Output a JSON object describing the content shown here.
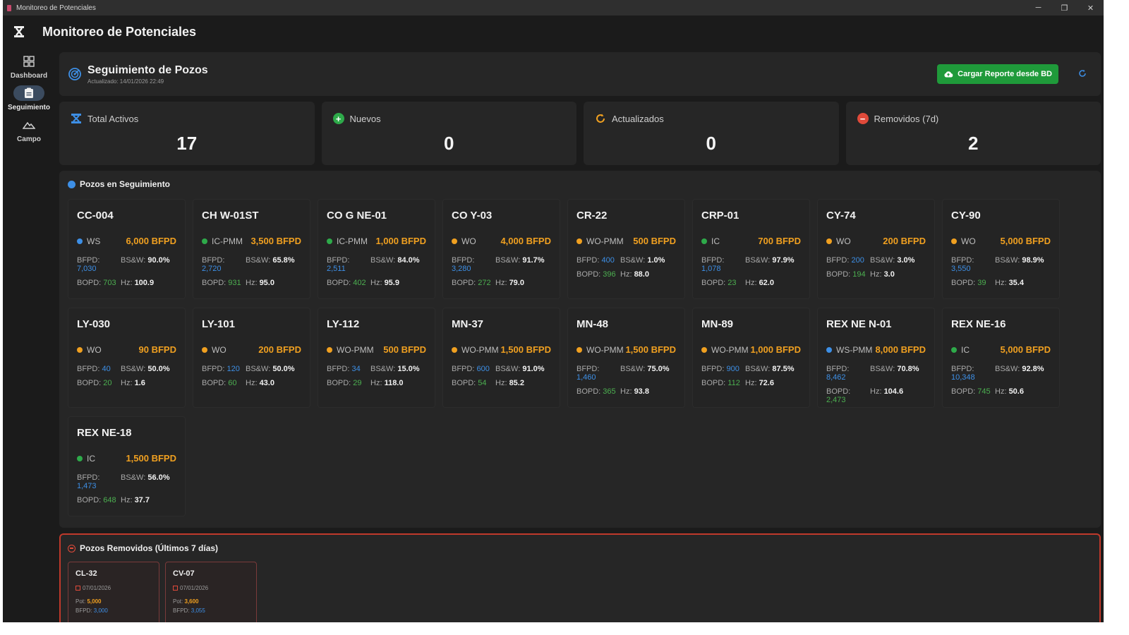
{
  "window": {
    "title": "Monitoreo de Potenciales",
    "controls": {
      "minimize": "─",
      "restore": "❐",
      "close": "✕"
    }
  },
  "app": {
    "title": "Monitoreo de Potenciales"
  },
  "sidebar": {
    "items": [
      {
        "label": "Dashboard",
        "icon": "grid-icon",
        "active": false
      },
      {
        "label": "Seguimiento",
        "icon": "clipboard-icon",
        "active": true
      },
      {
        "label": "Campo",
        "icon": "mountain-icon",
        "active": false
      }
    ]
  },
  "header": {
    "title": "Seguimiento de Pozos",
    "updated": "Actualizado: 14/01/2026 22:49",
    "load_button": "Cargar Reporte desde BD",
    "refresh_icon": "refresh-icon"
  },
  "stats": [
    {
      "label": "Total Activos",
      "value": "17",
      "icon": "oil-rig-icon",
      "color": "#3d8fe6"
    },
    {
      "label": "Nuevos",
      "value": "0",
      "icon": "plus-circle-icon",
      "color": "#2eaa4a"
    },
    {
      "label": "Actualizados",
      "value": "0",
      "icon": "refresh-icon",
      "color": "#f0a020"
    },
    {
      "label": "Removidos (7d)",
      "value": "2",
      "icon": "minus-circle-icon",
      "color": "#e04a3a"
    }
  ],
  "wells_panel": {
    "title": "Pozos en Seguimiento",
    "labels": {
      "bfpd": "BFPD:",
      "bsw": "BS&W:",
      "bopd": "BOPD:",
      "hz": "Hz:"
    },
    "wells": [
      {
        "name": "CC-004",
        "type": "WS",
        "status_color": "#3d8fe6",
        "potential": "6,000 BFPD",
        "bfpd": "7,030",
        "bsw": "90.0%",
        "bopd": "703",
        "hz": "100.9"
      },
      {
        "name": "CH W-01ST",
        "type": "IC-PMM",
        "status_color": "#2eaa4a",
        "potential": "3,500 BFPD",
        "bfpd": "2,720",
        "bsw": "65.8%",
        "bopd": "931",
        "hz": "95.0"
      },
      {
        "name": "CO G NE-01",
        "type": "IC-PMM",
        "status_color": "#2eaa4a",
        "potential": "1,000 BFPD",
        "bfpd": "2,511",
        "bsw": "84.0%",
        "bopd": "402",
        "hz": "95.9"
      },
      {
        "name": "CO Y-03",
        "type": "WO",
        "status_color": "#f0a020",
        "potential": "4,000 BFPD",
        "bfpd": "3,280",
        "bsw": "91.7%",
        "bopd": "272",
        "hz": "79.0"
      },
      {
        "name": "CR-22",
        "type": "WO-PMM",
        "status_color": "#f0a020",
        "potential": "500 BFPD",
        "bfpd": "400",
        "bsw": "1.0%",
        "bopd": "396",
        "hz": "88.0"
      },
      {
        "name": "CRP-01",
        "type": "IC",
        "status_color": "#2eaa4a",
        "potential": "700 BFPD",
        "bfpd": "1,078",
        "bsw": "97.9%",
        "bopd": "23",
        "hz": "62.0"
      },
      {
        "name": "CY-74",
        "type": "WO",
        "status_color": "#f0a020",
        "potential": "200 BFPD",
        "bfpd": "200",
        "bsw": "3.0%",
        "bopd": "194",
        "hz": "3.0"
      },
      {
        "name": "CY-90",
        "type": "WO",
        "status_color": "#f0a020",
        "potential": "5,000 BFPD",
        "bfpd": "3,550",
        "bsw": "98.9%",
        "bopd": "39",
        "hz": "35.4"
      },
      {
        "name": "LY-030",
        "type": "WO",
        "status_color": "#f0a020",
        "potential": "90 BFPD",
        "bfpd": "40",
        "bsw": "50.0%",
        "bopd": "20",
        "hz": "1.6"
      },
      {
        "name": "LY-101",
        "type": "WO",
        "status_color": "#f0a020",
        "potential": "200 BFPD",
        "bfpd": "120",
        "bsw": "50.0%",
        "bopd": "60",
        "hz": "43.0"
      },
      {
        "name": "LY-112",
        "type": "WO-PMM",
        "status_color": "#f0a020",
        "potential": "500 BFPD",
        "bfpd": "34",
        "bsw": "15.0%",
        "bopd": "29",
        "hz": "118.0"
      },
      {
        "name": "MN-37",
        "type": "WO-PMM",
        "status_color": "#f0a020",
        "potential": "1,500 BFPD",
        "bfpd": "600",
        "bsw": "91.0%",
        "bopd": "54",
        "hz": "85.2"
      },
      {
        "name": "MN-48",
        "type": "WO-PMM",
        "status_color": "#f0a020",
        "potential": "1,500 BFPD",
        "bfpd": "1,460",
        "bsw": "75.0%",
        "bopd": "365",
        "hz": "93.8"
      },
      {
        "name": "MN-89",
        "type": "WO-PMM",
        "status_color": "#f0a020",
        "potential": "1,000 BFPD",
        "bfpd": "900",
        "bsw": "87.5%",
        "bopd": "112",
        "hz": "72.6"
      },
      {
        "name": "REX NE N-01",
        "type": "WS-PMM",
        "status_color": "#3d8fe6",
        "potential": "8,000 BFPD",
        "bfpd": "8,462",
        "bsw": "70.8%",
        "bopd": "2,473",
        "hz": "104.6"
      },
      {
        "name": "REX NE-16",
        "type": "IC",
        "status_color": "#2eaa4a",
        "potential": "5,000 BFPD",
        "bfpd": "10,348",
        "bsw": "92.8%",
        "bopd": "745",
        "hz": "50.6"
      },
      {
        "name": "REX NE-18",
        "type": "IC",
        "status_color": "#2eaa4a",
        "potential": "1,500 BFPD",
        "bfpd": "1,473",
        "bsw": "56.0%",
        "bopd": "648",
        "hz": "37.7"
      }
    ]
  },
  "removed_panel": {
    "title": "Pozos Removidos (Últimos 7 días)",
    "labels": {
      "pot": "Pot:",
      "bfpd": "BFPD:"
    },
    "wells": [
      {
        "name": "CL-32",
        "date": "07/01/2026",
        "pot": "5,000",
        "bfpd": "3,000"
      },
      {
        "name": "CV-07",
        "date": "07/01/2026",
        "pot": "3,600",
        "bfpd": "3,055"
      }
    ]
  }
}
